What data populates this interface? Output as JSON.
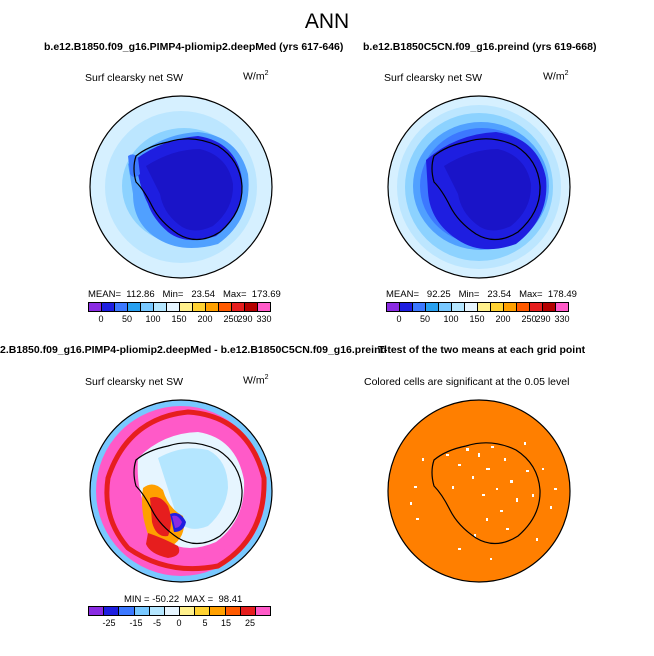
{
  "main_title": "ANN",
  "panels": {
    "top_left": {
      "case": "b.e12.B1850.f09_g16.PIMP4-pliomip2.deepMed (yrs 617-646)",
      "variable": "Surf clearsky net SW",
      "units_base": "W/m",
      "units_exp": "2",
      "stats": "MEAN=  112.86   Min=   23.54   Max=  173.69",
      "colorbar_ticks": [
        "0",
        "50",
        "100",
        "150",
        "200",
        "250",
        "290",
        "330"
      ]
    },
    "top_right": {
      "case": "b.e12.B1850C5CN.f09_g16.preind (yrs 619-668)",
      "variable": "Surf clearsky net SW",
      "units_base": "W/m",
      "units_exp": "2",
      "stats": "MEAN=   92.25   Min=   23.54   Max=  178.49",
      "colorbar_ticks": [
        "0",
        "50",
        "100",
        "150",
        "200",
        "250",
        "290",
        "330"
      ]
    },
    "bottom_left": {
      "case": "2.B1850.f09_g16.PIMP4-pliomip2.deepMed - b.e12.B1850C5CN.f09_g16.preind",
      "variable": "Surf clearsky net SW",
      "units_base": "W/m",
      "units_exp": "2",
      "stats": "MIN = -50.22  MAX =  98.41",
      "colorbar_ticks": [
        "-25",
        "-15",
        "-5",
        "0",
        "5",
        "15",
        "25"
      ]
    },
    "bottom_right": {
      "case": "T-test of the two means at each grid point",
      "variable": "Colored cells are significant at the 0.05 level"
    }
  },
  "colors": {
    "abs_scale": [
      "#8a2be2",
      "#1e1ee0",
      "#3c78ff",
      "#28a0f0",
      "#78c8ff",
      "#b4e6ff",
      "#e6f5ff",
      "#fff08c",
      "#ffd232",
      "#ffa000",
      "#ff5a00",
      "#e61e1e",
      "#b40000",
      "#ff5ac8"
    ],
    "diff_scale": [
      "#8a2be2",
      "#1e1ee0",
      "#3c78ff",
      "#78c8ff",
      "#b4e6ff",
      "#e6f5ff",
      "#fff08c",
      "#ffd232",
      "#ffa000",
      "#ff5a00",
      "#e61e1e",
      "#ff5ac8"
    ],
    "ttest": "#ff7f00"
  }
}
